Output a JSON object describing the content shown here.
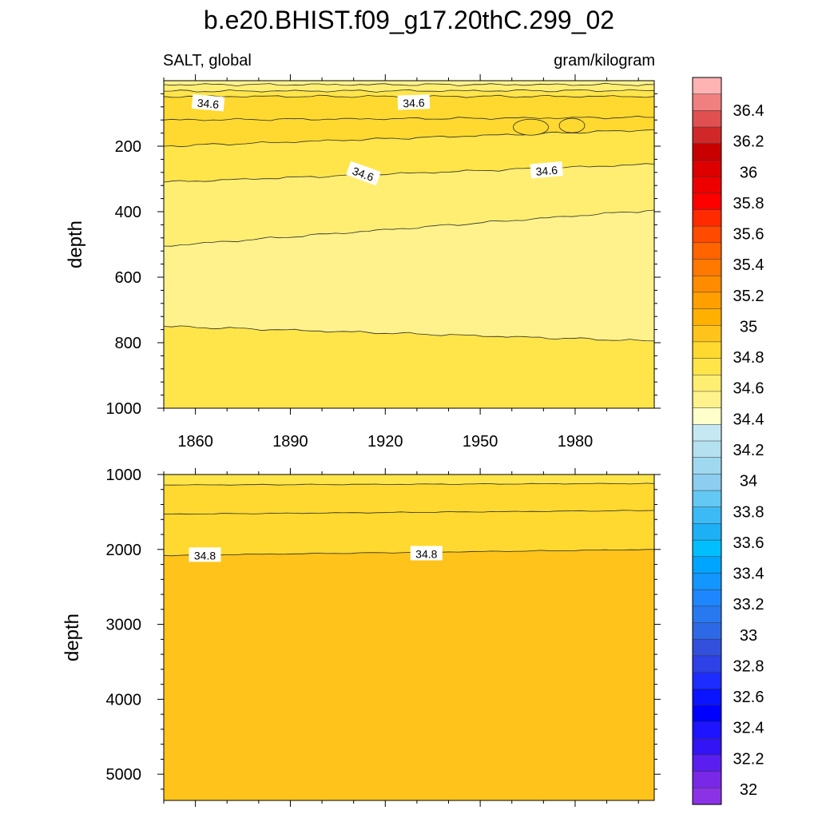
{
  "title": "b.e20.BHIST.f09_g17.20thC.299_02",
  "left_string": "SALT, global",
  "right_string": "gram/kilogram",
  "colors": {
    "band_top": "#fff28c",
    "band_34_4": "#ffee72",
    "band_deep_mid": "#ffe54a",
    "band_34_6": "#ffd930",
    "band_deep": "#ffc31c",
    "line": "#2a2a2a"
  },
  "chart_data": [
    {
      "type": "contour",
      "panel": "upper",
      "ylabel": "depth",
      "xlim": [
        1850,
        2005
      ],
      "ylim": [
        1000,
        0
      ],
      "x_ticks": [
        1860,
        1890,
        1920,
        1950,
        1980
      ],
      "y_ticks": [
        200,
        400,
        600,
        800,
        1000
      ],
      "contour_lines": [
        {
          "depth_start": 12,
          "depth_end": 12
        },
        {
          "depth_start": 32,
          "depth_end": 30
        },
        {
          "depth_start": 48,
          "depth_end": 48
        },
        {
          "depth_start": 120,
          "depth_end": 112
        },
        {
          "depth_start": 200,
          "depth_end": 150
        },
        {
          "depth_start": 310,
          "depth_end": 255
        },
        {
          "depth_start": 505,
          "depth_end": 395
        },
        {
          "depth_start": 750,
          "depth_end": 795
        }
      ],
      "labels": [
        {
          "text": "34.6",
          "year": 1864,
          "depth": 70,
          "rotation": 5
        },
        {
          "text": "34.6",
          "year": 1929,
          "depth": 68,
          "rotation": -2
        },
        {
          "text": "34.6",
          "year": 1913,
          "depth": 285,
          "rotation": 20
        },
        {
          "text": "34.6",
          "year": 1971,
          "depth": 275,
          "rotation": -5
        }
      ]
    },
    {
      "type": "contour",
      "panel": "lower",
      "ylabel": "depth",
      "xlim": [
        1850,
        2005
      ],
      "ylim": [
        5350,
        1000
      ],
      "y_ticks": [
        1000,
        2000,
        3000,
        4000,
        5000
      ],
      "contour_lines": [
        {
          "depth_start": 1140,
          "depth_end": 1120
        },
        {
          "depth_start": 1530,
          "depth_end": 1480
        },
        {
          "depth_start": 2080,
          "depth_end": 2000
        }
      ],
      "labels": [
        {
          "text": "34.8",
          "year": 1863,
          "depth": 2080
        },
        {
          "text": "34.8",
          "year": 1933,
          "depth": 2060
        }
      ]
    }
  ],
  "colorbar": {
    "tick_labels": [
      "36.4",
      "36.2",
      "36",
      "35.8",
      "35.6",
      "35.4",
      "35.2",
      "35",
      "34.8",
      "34.6",
      "34.4",
      "34.2",
      "34",
      "33.8",
      "33.6",
      "33.4",
      "33.2",
      "33",
      "32.8",
      "32.6",
      "32.4",
      "32.2",
      "32"
    ],
    "colors": [
      "#ffb3b3",
      "#f08080",
      "#e05050",
      "#d02828",
      "#c80000",
      "#dc0000",
      "#ee0000",
      "#ff0000",
      "#ff2a00",
      "#ff4a00",
      "#ff6400",
      "#ff7800",
      "#ff8c00",
      "#ffa000",
      "#ffb000",
      "#ffc31c",
      "#ffd930",
      "#ffe54a",
      "#ffee72",
      "#fff28c",
      "#ffffcc",
      "#c6e8f2",
      "#b4e0f0",
      "#a0d8f0",
      "#8ccdf0",
      "#64c8f5",
      "#3cbaf5",
      "#1eb0f5",
      "#00beff",
      "#00a5ff",
      "#1496ff",
      "#1e87ff",
      "#2878f0",
      "#2d69e6",
      "#3250dc",
      "#2d41e6",
      "#1e2dff",
      "#0a14ff",
      "#0000ff",
      "#1e14ff",
      "#3214f5",
      "#5a1ef0",
      "#7828e6",
      "#8c32e6"
    ]
  }
}
